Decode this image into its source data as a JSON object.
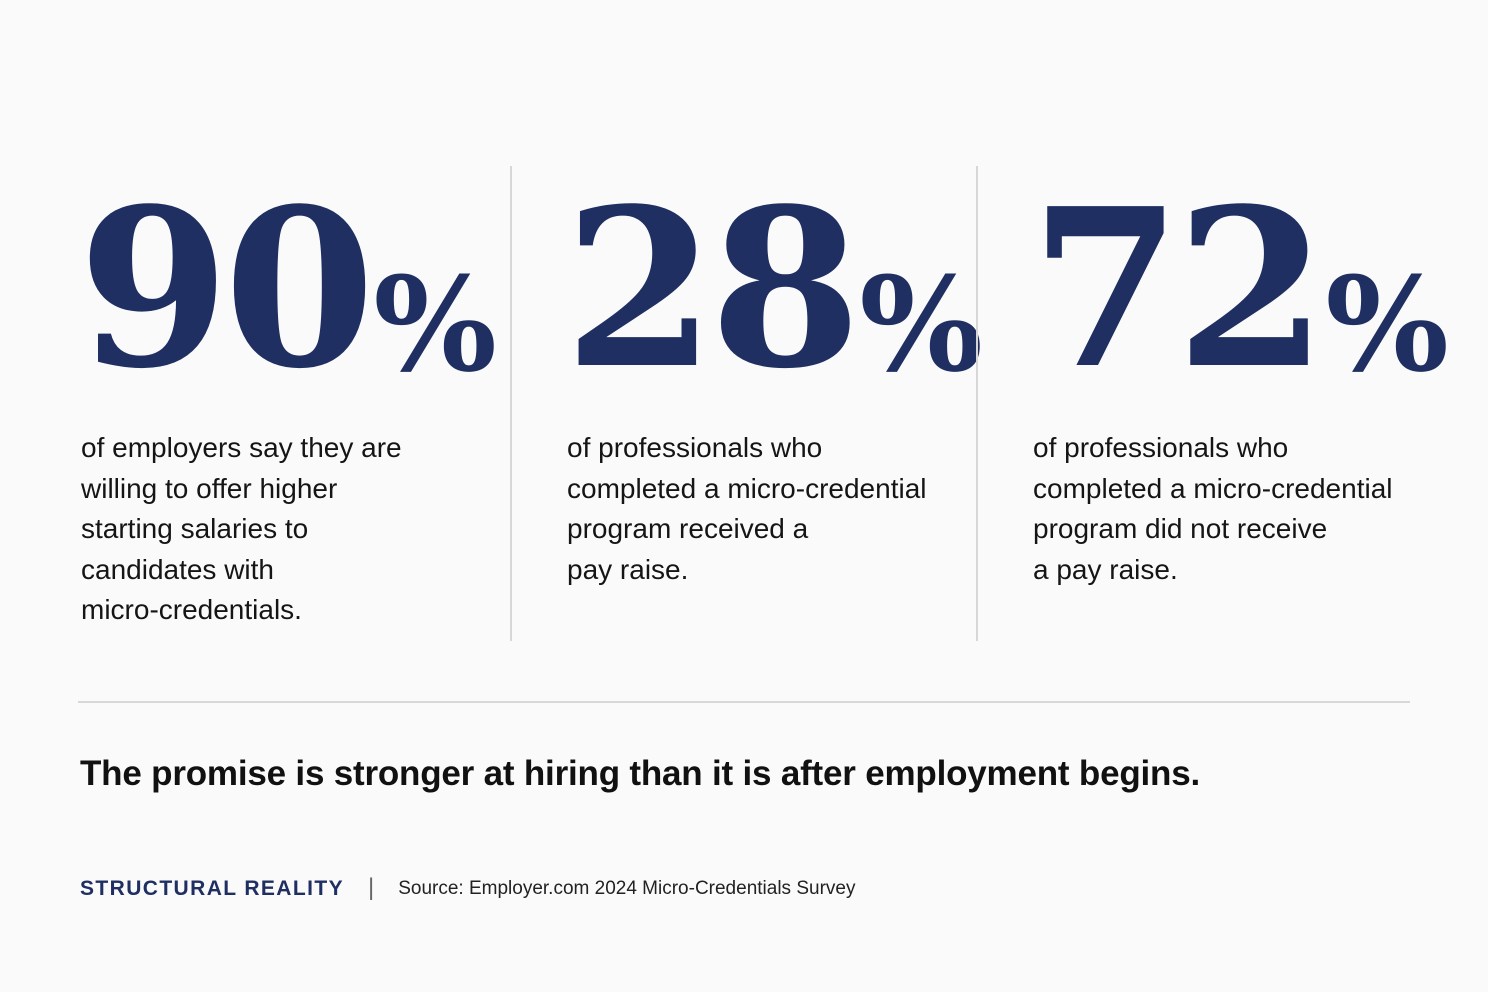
{
  "stats": [
    {
      "number": "90",
      "percent": "%",
      "description_lines": [
        "of employers say they are",
        "willing to offer higher",
        "starting salaries to",
        "candidates with",
        "micro-credentials."
      ]
    },
    {
      "number": "28",
      "percent": "%",
      "description_lines": [
        "of professionals who",
        "completed a micro-credential",
        "program received a",
        "pay raise."
      ]
    },
    {
      "number": "72",
      "percent": "%",
      "description_lines": [
        "of professionals who",
        "completed a micro-credential",
        "program did not receive",
        "a pay raise."
      ]
    }
  ],
  "headline": "The promise is stronger at hiring than it is after employment begins.",
  "footer": {
    "brand": "STRUCTURAL REALITY",
    "separator": "|",
    "source": "Source: Employer.com 2024 Micro-Credentials Survey"
  },
  "colors": {
    "accent": "#1f2f62",
    "text": "#111111",
    "divider": "#d7d7d7",
    "background": "#fafafa"
  }
}
